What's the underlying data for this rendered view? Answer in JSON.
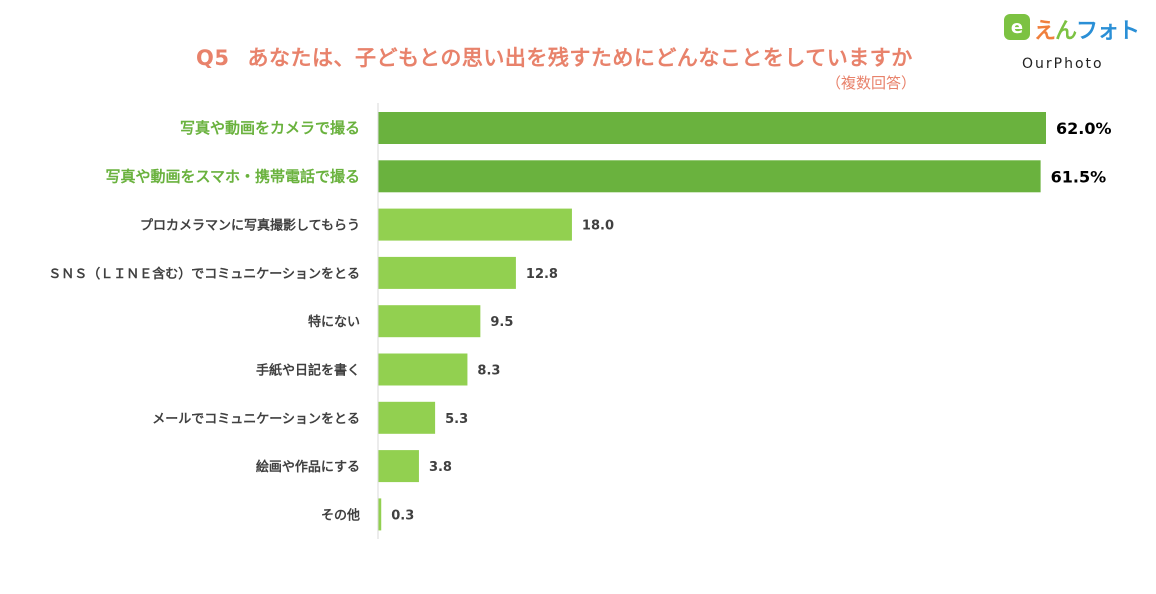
{
  "title": {
    "q": "Q5",
    "text": "あなたは、子どもとの思い出を残すためにどんなことをしていますか",
    "note": "（複数回答）"
  },
  "logo": {
    "badge": "e",
    "jp_parts": [
      "え",
      "ん",
      "フォト"
    ],
    "en": "OurPhoto",
    "colors": [
      "#f07f3c",
      "#7cc242",
      "#2a8fd6"
    ]
  },
  "colors": {
    "title": "#e8826b",
    "bar_top": "#6ab23e",
    "bar_other": "#92d050",
    "label_top": "#6ab23e",
    "label_other": "#404040",
    "axis": "#d9d9d9"
  },
  "chart_data": {
    "type": "bar",
    "orientation": "horizontal",
    "categories": [
      "写真や動画をカメラで撮る",
      "写真や動画をスマホ・携帯電話で撮る",
      "プロカメラマンに写真撮影してもらう",
      "ＳＮＳ（ＬＩＮＥ含む）でコミュニケーションをとる",
      "特にない",
      "手紙や日記を書く",
      "メールでコミュニケーションをとる",
      "絵画や作品にする",
      "その他"
    ],
    "values": [
      62.0,
      61.5,
      18.0,
      12.8,
      9.5,
      8.3,
      5.3,
      3.8,
      0.3
    ],
    "value_labels": [
      "62.0%",
      "61.5%",
      "18.0",
      "12.8",
      "9.5",
      "8.3",
      "5.3",
      "3.8",
      "0.3"
    ],
    "highlight_top": 2,
    "xlim": [
      0,
      62
    ]
  }
}
